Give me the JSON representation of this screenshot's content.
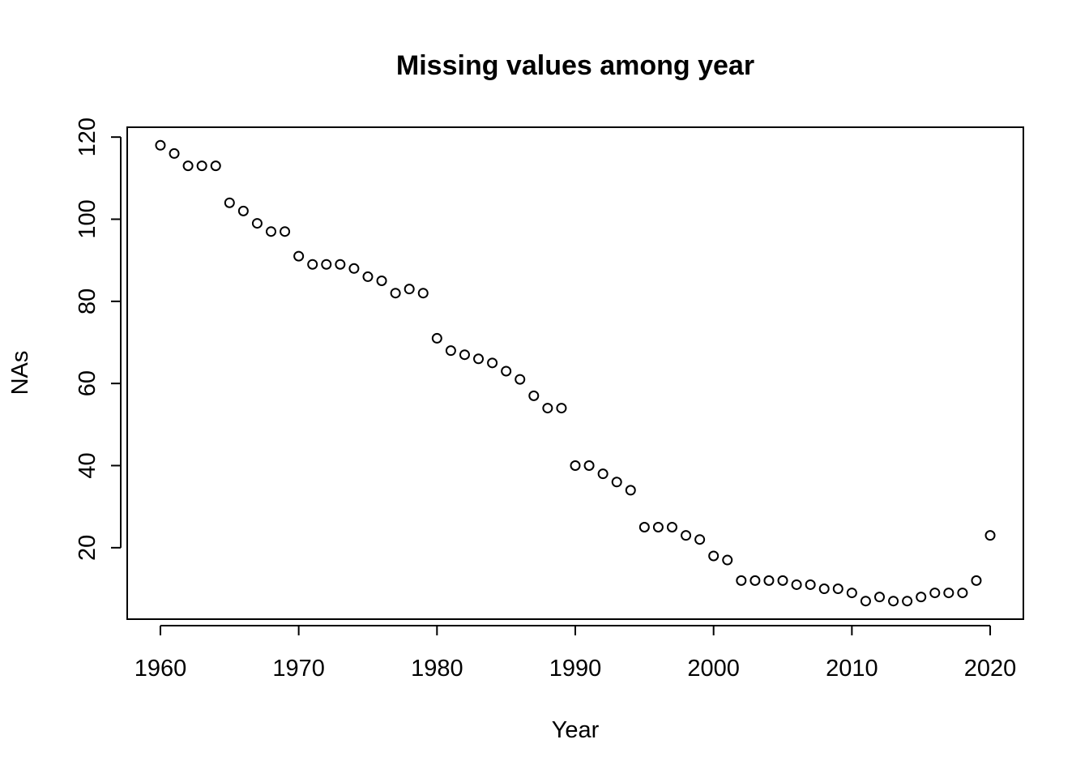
{
  "chart_data": {
    "type": "scatter",
    "title": "Missing values among year",
    "xlabel": "Year",
    "ylabel": "NAs",
    "xlim": [
      1957.6,
      2022.4
    ],
    "ylim": [
      2.6,
      122.4
    ],
    "xticks": [
      1960,
      1970,
      1980,
      1990,
      2000,
      2010,
      2020
    ],
    "yticks": [
      20,
      40,
      60,
      80,
      100,
      120
    ],
    "grid": false,
    "marker": "open-circle",
    "color": "#000000",
    "x": [
      1960,
      1961,
      1962,
      1963,
      1964,
      1965,
      1966,
      1967,
      1968,
      1969,
      1970,
      1971,
      1972,
      1973,
      1974,
      1975,
      1976,
      1977,
      1978,
      1979,
      1980,
      1981,
      1982,
      1983,
      1984,
      1985,
      1986,
      1987,
      1988,
      1989,
      1990,
      1991,
      1992,
      1993,
      1994,
      1995,
      1996,
      1997,
      1998,
      1999,
      2000,
      2001,
      2002,
      2003,
      2004,
      2005,
      2006,
      2007,
      2008,
      2009,
      2010,
      2011,
      2012,
      2013,
      2014,
      2015,
      2016,
      2017,
      2018,
      2019,
      2020
    ],
    "y": [
      118,
      116,
      113,
      113,
      113,
      104,
      102,
      99,
      97,
      97,
      91,
      89,
      89,
      89,
      88,
      86,
      85,
      82,
      83,
      82,
      71,
      68,
      67,
      66,
      65,
      63,
      61,
      57,
      54,
      54,
      40,
      40,
      38,
      36,
      34,
      25,
      25,
      25,
      23,
      22,
      18,
      17,
      12,
      12,
      12,
      12,
      11,
      11,
      10,
      10,
      9,
      7,
      8,
      7,
      7,
      8,
      9,
      9,
      9,
      12,
      23
    ]
  }
}
